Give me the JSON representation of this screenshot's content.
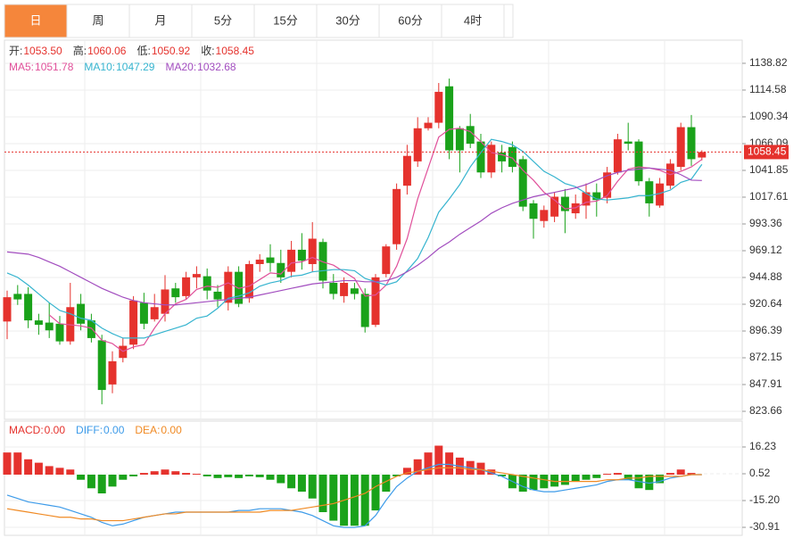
{
  "tabs": {
    "items": [
      "日",
      "周",
      "月",
      "5分",
      "15分",
      "30分",
      "60分",
      "4时"
    ],
    "selected": 0
  },
  "chart_data": [
    {
      "type": "candlestick",
      "up_color": "#e5322d",
      "down_color": "#1aa21a",
      "ohlc_legend": [
        {
          "name": "开:",
          "value": "1053.50"
        },
        {
          "name": "高:",
          "value": "1060.06"
        },
        {
          "name": "低:",
          "value": "1050.92"
        },
        {
          "name": "收:",
          "value": "1058.45"
        }
      ],
      "open": [
        905,
        930,
        930,
        906,
        904,
        903,
        887,
        921,
        906,
        888,
        848,
        872,
        884,
        922,
        907,
        912,
        935,
        928,
        945,
        946,
        932,
        922,
        950,
        926,
        957,
        963,
        958,
        950,
        970,
        957,
        977,
        940,
        928,
        935,
        930,
        902,
        948,
        975,
        1028,
        1050,
        1080,
        1085,
        1118,
        1080,
        1082,
        1068,
        1040,
        1058,
        1063,
        1052,
        1012,
        996,
        1000,
        1018,
        1003,
        1010,
        1022,
        1017,
        1040,
        1068,
        1068,
        1032,
        1010,
        1028,
        1045,
        1081,
        1053.5
      ],
      "high": [
        933,
        938,
        936,
        912,
        922,
        910,
        940,
        930,
        912,
        893,
        878,
        890,
        928,
        931,
        930,
        947,
        940,
        950,
        955,
        953,
        938,
        955,
        955,
        960,
        966,
        975,
        970,
        978,
        985,
        995,
        980,
        948,
        945,
        940,
        935,
        948,
        975,
        1030,
        1065,
        1090,
        1090,
        1121,
        1125,
        1082,
        1093,
        1075,
        1068,
        1065,
        1068,
        1055,
        1015,
        1010,
        1022,
        1025,
        1020,
        1030,
        1030,
        1045,
        1075,
        1085,
        1070,
        1035,
        1035,
        1052,
        1085,
        1092,
        1060.06
      ],
      "low": [
        889,
        920,
        899,
        893,
        890,
        884,
        884,
        897,
        886,
        830,
        840,
        868,
        880,
        898,
        905,
        905,
        922,
        925,
        935,
        925,
        918,
        915,
        918,
        922,
        950,
        950,
        940,
        945,
        952,
        950,
        935,
        925,
        922,
        925,
        895,
        900,
        945,
        970,
        1020,
        1045,
        1078,
        1080,
        1052,
        1040,
        1062,
        1035,
        1035,
        1040,
        1040,
        1005,
        980,
        990,
        995,
        985,
        998,
        998,
        1000,
        1012,
        1038,
        1060,
        1028,
        1000,
        1008,
        1025,
        1042,
        1046,
        1050.92
      ],
      "close": [
        927,
        925,
        906,
        902,
        897,
        887,
        918,
        903,
        890,
        843,
        869,
        883,
        924,
        903,
        918,
        934,
        927,
        945,
        948,
        933,
        925,
        950,
        921,
        957,
        961,
        958,
        945,
        970,
        960,
        980,
        942,
        930,
        940,
        930,
        900,
        945,
        973,
        1025,
        1055,
        1080,
        1085,
        1113,
        1060,
        1060,
        1066,
        1040,
        1065,
        1050,
        1045,
        1009,
        998,
        1006,
        1018,
        1005,
        1012,
        1022,
        1015,
        1040,
        1070,
        1066,
        1032,
        1012,
        1030,
        1048,
        1081,
        1052,
        1058.45
      ],
      "series": [
        {
          "name": "MA5:",
          "color": "#e0509a",
          "values": [
            null,
            null,
            null,
            null,
            911,
            903,
            902,
            901,
            899,
            888,
            885,
            878,
            882,
            884,
            899,
            912,
            921,
            925,
            934,
            937,
            936,
            940,
            935,
            937,
            943,
            949,
            948,
            958,
            959,
            963,
            959,
            956,
            950,
            944,
            928,
            929,
            938,
            955,
            980,
            1016,
            1044,
            1072,
            1079,
            1080,
            1077,
            1068,
            1058,
            1056,
            1053,
            1042,
            1033,
            1022,
            1015,
            1007,
            1008,
            1013,
            1014,
            1019,
            1032,
            1043,
            1045,
            1044,
            1042,
            1038,
            1041,
            1045,
            1051.78
          ]
        },
        {
          "name": "MA10:",
          "color": "#36b4cf",
          "values": [
            949,
            945,
            938,
            930,
            922,
            915,
            912,
            908,
            906,
            899,
            894,
            890,
            890,
            890,
            893,
            896,
            899,
            902,
            908,
            910,
            917,
            926,
            928,
            931,
            937,
            940,
            942,
            946,
            947,
            950,
            951,
            952,
            952,
            951,
            944,
            941,
            938,
            941,
            951,
            962,
            981,
            1004,
            1016,
            1029,
            1045,
            1058,
            1070,
            1068,
            1065,
            1059,
            1050,
            1041,
            1036,
            1030,
            1027,
            1021,
            1016,
            1015,
            1016,
            1017,
            1019,
            1019,
            1021,
            1024,
            1031,
            1034,
            1047.29
          ]
        },
        {
          "name": "MA20:",
          "color": "#a24dbf",
          "values": [
            968,
            967,
            966,
            963,
            959,
            955,
            950,
            945,
            940,
            935,
            931,
            927,
            924,
            922,
            921,
            920,
            920,
            921,
            922,
            923,
            924,
            925,
            926,
            927,
            929,
            931,
            933,
            935,
            937,
            939,
            940,
            941,
            942,
            942,
            941,
            941,
            942,
            945,
            950,
            956,
            963,
            971,
            977,
            984,
            990,
            996,
            1003,
            1008,
            1012,
            1015,
            1018,
            1020,
            1022,
            1024,
            1026,
            1029,
            1033,
            1037,
            1040,
            1042,
            1043,
            1044,
            1043,
            1042,
            1038,
            1033,
            1032.68
          ]
        }
      ],
      "last_price": 1058.45,
      "last_price_color": "#e5322d",
      "ylim": [
        816.4,
        1159.8
      ],
      "yticks": [
        823.66,
        847.91,
        872.15,
        896.39,
        920.64,
        944.88,
        969.12,
        993.36,
        1017.61,
        1041.85,
        1066.09,
        1090.34,
        1114.58,
        1138.82
      ],
      "grid": true
    },
    {
      "type": "macd",
      "series": [
        {
          "name": "MACD:",
          "legend_value": "0.00",
          "color": "#e5322d",
          "down_color": "#1aa21a",
          "values": [
            13,
            13,
            9,
            7,
            5,
            4,
            3,
            -3,
            -8,
            -11,
            -7,
            -3,
            -1,
            1,
            2,
            3,
            2,
            1,
            0.5,
            -1,
            -2,
            -1.5,
            -2,
            -1,
            -1.5,
            -3,
            -5,
            -8,
            -10,
            -14,
            -22,
            -27,
            -30,
            -30,
            -30,
            -21,
            -10,
            -1,
            4,
            9,
            13,
            17,
            13,
            10,
            8,
            7,
            3,
            -1,
            -8,
            -10,
            -9,
            -8,
            -7,
            -6,
            -4,
            -3,
            -2,
            0.5,
            1,
            -3,
            -8,
            -9,
            -5,
            1,
            3,
            1,
            0
          ]
        },
        {
          "name": "DIFF:",
          "legend_value": "0.00",
          "color": "#3d9be9",
          "values": [
            -12,
            -14,
            -16,
            -17,
            -18,
            -19,
            -21,
            -23,
            -25,
            -28,
            -30,
            -29,
            -27,
            -25,
            -24,
            -23,
            -22,
            -22,
            -22,
            -22,
            -22,
            -22,
            -21,
            -21,
            -20,
            -20,
            -20,
            -21,
            -22,
            -24,
            -27,
            -30,
            -31,
            -31,
            -30,
            -24,
            -15,
            -7,
            -2,
            2,
            4,
            6,
            6,
            5,
            4,
            3,
            1,
            -1,
            -4,
            -7,
            -9,
            -10,
            -10,
            -9,
            -8,
            -7,
            -6,
            -4,
            -3,
            -3,
            -4,
            -5,
            -4,
            -2,
            -1,
            0,
            0
          ]
        },
        {
          "name": "DEA:",
          "legend_value": "0.00",
          "color": "#f08a24",
          "values": [
            -20,
            -21,
            -22,
            -23,
            -24,
            -25,
            -25,
            -26,
            -26,
            -27,
            -27,
            -27,
            -26,
            -25,
            -24,
            -23,
            -23,
            -22,
            -22,
            -22,
            -22,
            -22,
            -22,
            -22,
            -22,
            -21,
            -21,
            -21,
            -20,
            -19,
            -18,
            -17,
            -15,
            -13,
            -11,
            -7,
            -4,
            -1,
            1,
            2,
            3,
            4,
            4,
            4,
            3,
            3,
            2,
            1,
            0,
            -1,
            -2,
            -3,
            -4,
            -4,
            -4,
            -4,
            -4,
            -3,
            -3,
            -2,
            -2,
            -1,
            -1,
            -1,
            -1,
            0,
            0
          ]
        }
      ],
      "ylim": [
        -35.6,
        31.4
      ],
      "yticks": [
        {
          "value": -30.91,
          "label": "-30.91"
        },
        {
          "value": -15.2,
          "label": "-15.20"
        },
        0.52,
        16.23
      ],
      "grid": true
    }
  ]
}
